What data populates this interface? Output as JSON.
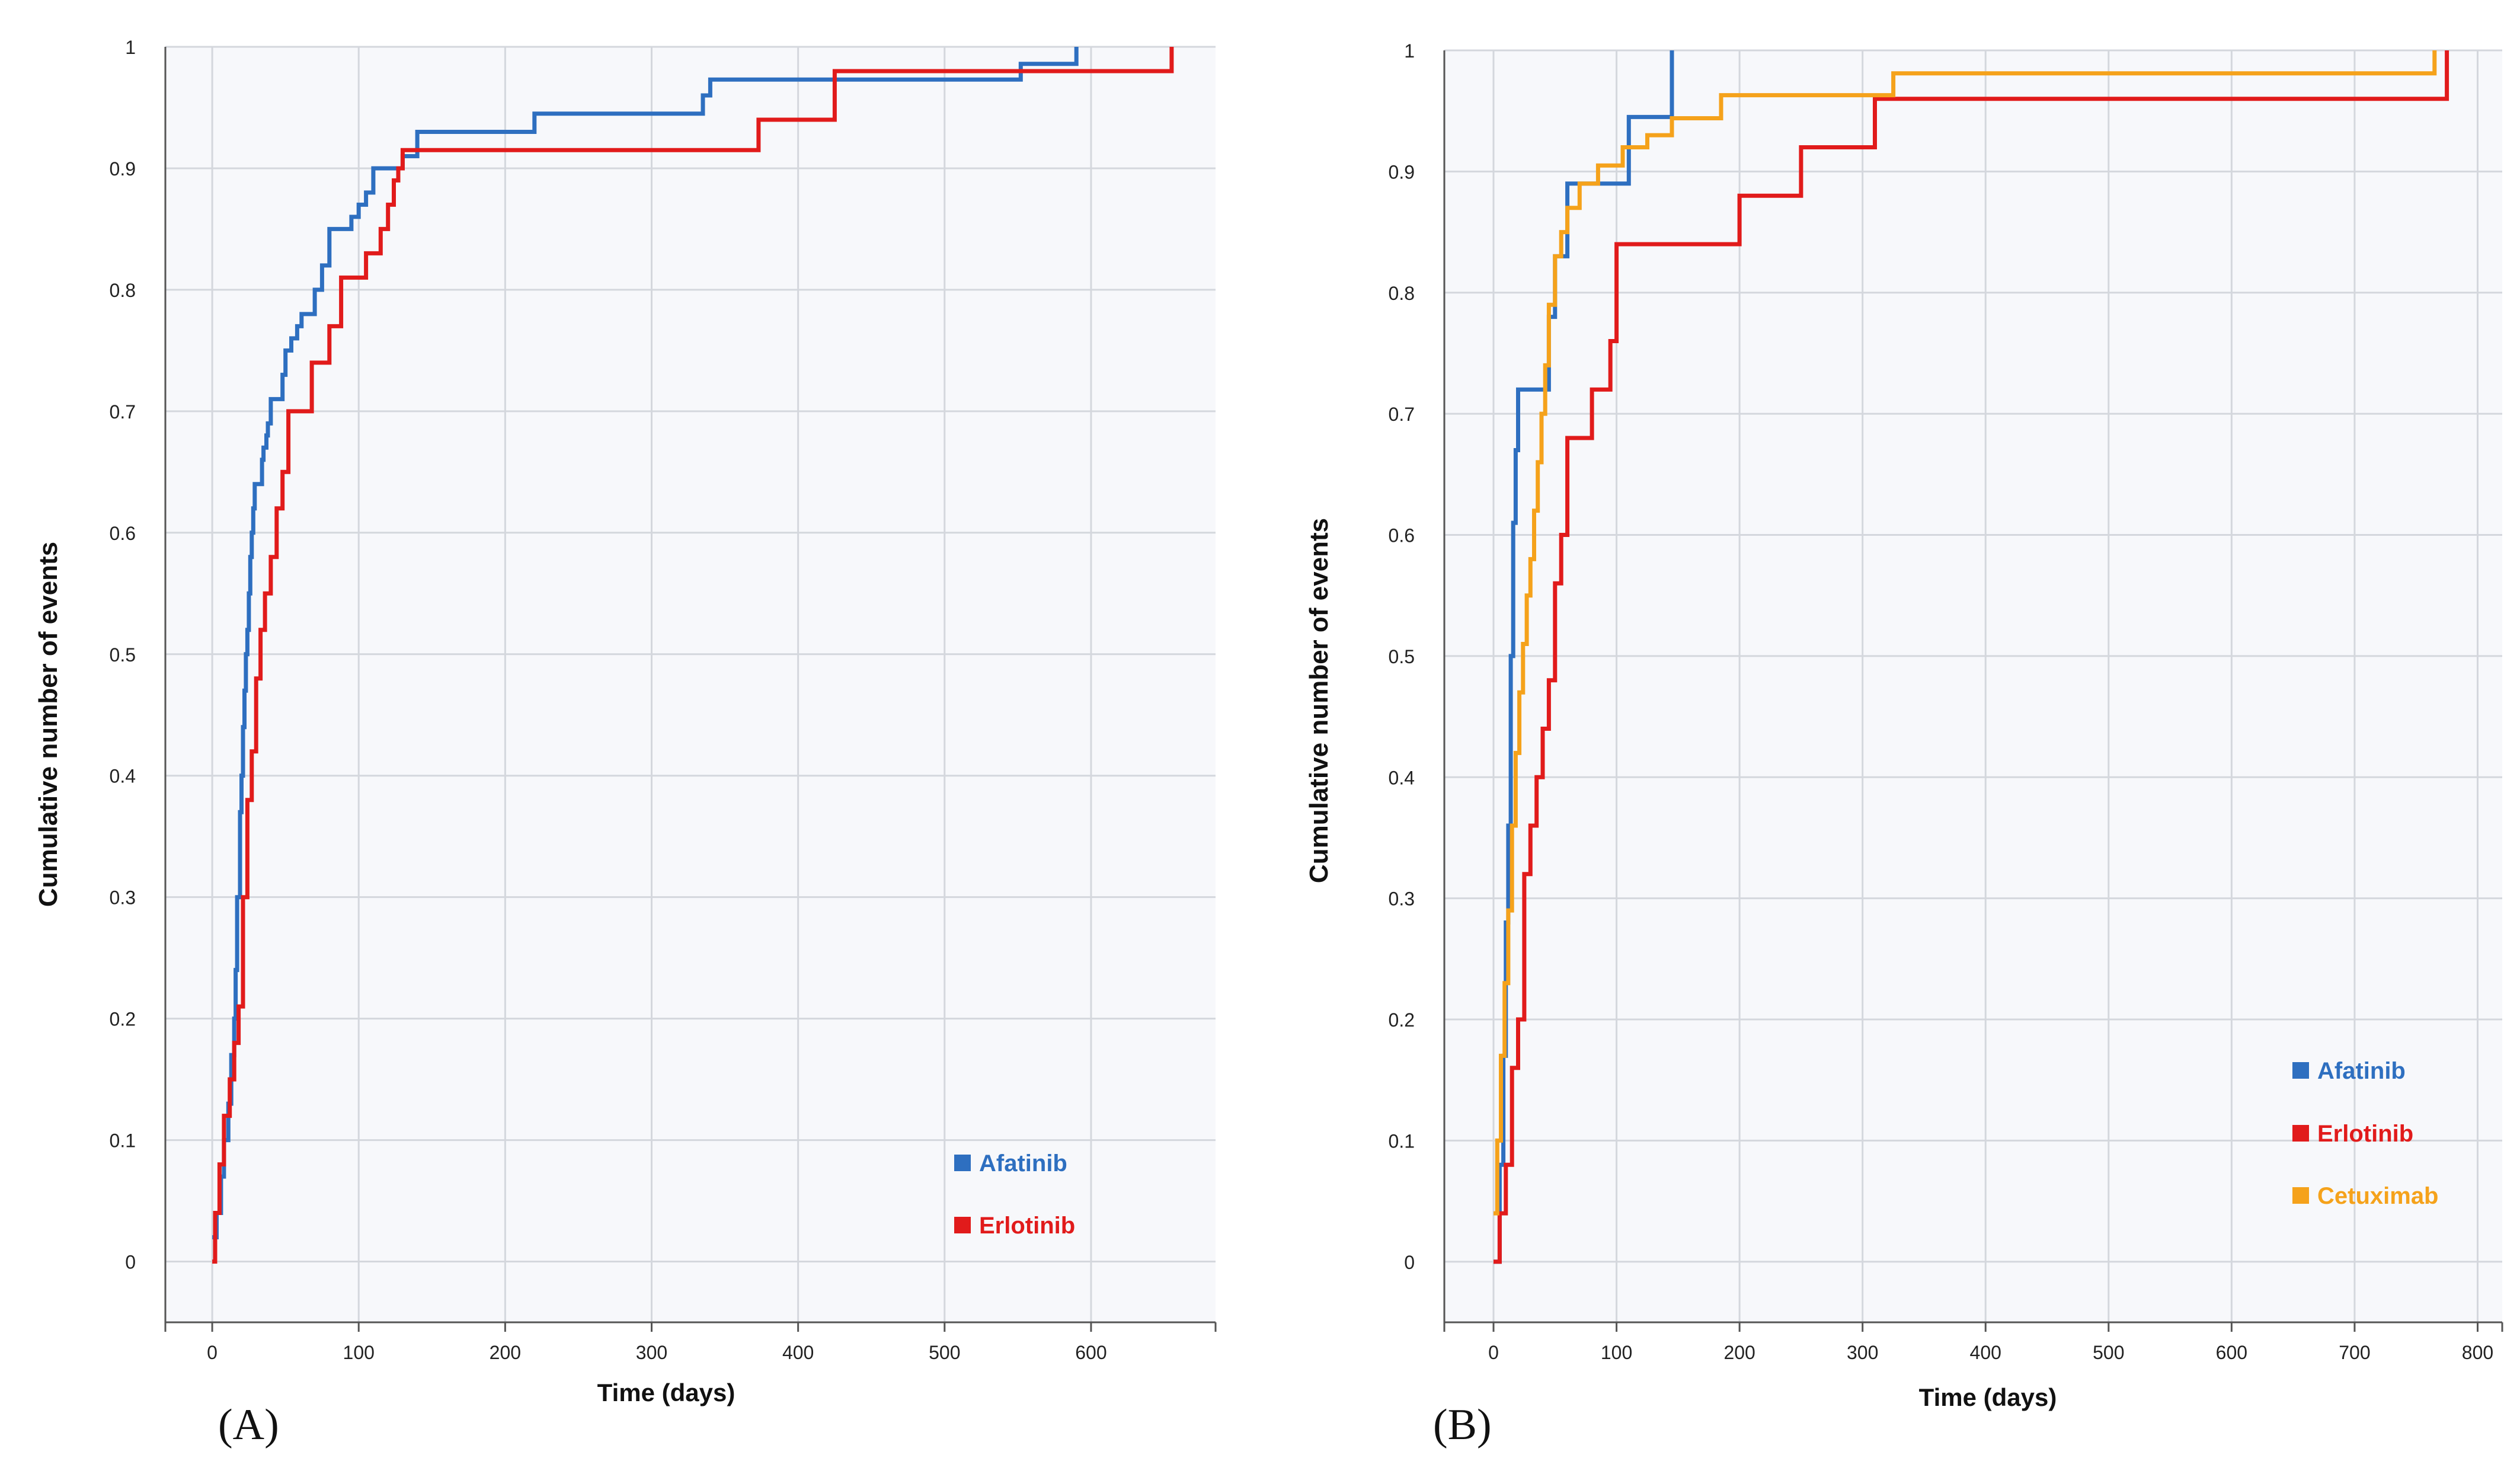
{
  "chart_data": [
    {
      "type": "line",
      "panel_label": "(A)",
      "xlabel": "Time (days)",
      "ylabel": "Cumulative number of events",
      "xlim": [
        -32,
        685
      ],
      "ylim": [
        -0.05,
        1.0
      ],
      "xticks": [
        0,
        100,
        200,
        300,
        400,
        500,
        600
      ],
      "yticks": [
        0,
        0.1,
        0.2,
        0.3,
        0.4,
        0.5,
        0.6,
        0.7,
        0.8,
        0.9,
        1
      ],
      "grid": true,
      "legend_position": "bottom-right",
      "series": [
        {
          "name": "Afatinib",
          "color": "#2e6fc0",
          "x": [
            0,
            3,
            6,
            8,
            11,
            13,
            15,
            16,
            17,
            19,
            20,
            21,
            22,
            23,
            24,
            25,
            26,
            27,
            28,
            29,
            30,
            31,
            32,
            34,
            35,
            37,
            38,
            40,
            42,
            44,
            46,
            48,
            50,
            54,
            56,
            58,
            61,
            65,
            70,
            75,
            80,
            88,
            95,
            100,
            105,
            110,
            130,
            140,
            220,
            335,
            340,
            425,
            552,
            590
          ],
          "y": [
            0.02,
            0.04,
            0.07,
            0.1,
            0.13,
            0.17,
            0.2,
            0.24,
            0.3,
            0.37,
            0.4,
            0.44,
            0.47,
            0.5,
            0.52,
            0.55,
            0.58,
            0.6,
            0.62,
            0.64,
            0.64,
            0.64,
            0.64,
            0.66,
            0.67,
            0.68,
            0.69,
            0.71,
            0.71,
            0.71,
            0.71,
            0.73,
            0.75,
            0.76,
            0.76,
            0.77,
            0.78,
            0.78,
            0.8,
            0.82,
            0.85,
            0.85,
            0.86,
            0.87,
            0.88,
            0.9,
            0.91,
            0.93,
            0.945,
            0.96,
            0.973,
            0.973,
            0.986,
            1.0
          ]
        },
        {
          "name": "Erlotinib",
          "color": "#e11b1b",
          "x": [
            0,
            2,
            5,
            8,
            12,
            15,
            18,
            21,
            24,
            27,
            30,
            33,
            36,
            40,
            44,
            48,
            52,
            56,
            60,
            68,
            72,
            80,
            88,
            96,
            105,
            115,
            120,
            124,
            127,
            130,
            373,
            425,
            655
          ],
          "y": [
            0.0,
            0.04,
            0.08,
            0.12,
            0.15,
            0.18,
            0.21,
            0.3,
            0.38,
            0.42,
            0.48,
            0.52,
            0.55,
            0.58,
            0.62,
            0.65,
            0.7,
            0.7,
            0.7,
            0.74,
            0.74,
            0.77,
            0.81,
            0.81,
            0.83,
            0.85,
            0.87,
            0.89,
            0.9,
            0.915,
            0.94,
            0.98,
            1.0
          ]
        }
      ]
    },
    {
      "type": "line",
      "panel_label": "(B)",
      "xlabel": "Time (days)",
      "ylabel": "Cumulative number of events",
      "xlim": [
        -40,
        820
      ],
      "ylim": [
        -0.05,
        1.0
      ],
      "xticks": [
        0,
        100,
        200,
        300,
        400,
        500,
        600,
        700,
        800
      ],
      "yticks": [
        0,
        0.1,
        0.2,
        0.3,
        0.4,
        0.5,
        0.6,
        0.7,
        0.8,
        0.9,
        1
      ],
      "grid": true,
      "legend_position": "bottom-right",
      "series": [
        {
          "name": "Afatinib",
          "color": "#2e6fc0",
          "x": [
            0,
            5,
            8,
            10,
            12,
            14,
            16,
            18,
            20,
            24,
            30,
            34,
            45,
            50,
            55,
            60,
            85,
            110,
            145
          ],
          "y": [
            0.0,
            0.08,
            0.17,
            0.28,
            0.36,
            0.5,
            0.61,
            0.67,
            0.72,
            0.72,
            0.72,
            0.72,
            0.78,
            0.83,
            0.83,
            0.89,
            0.89,
            0.945,
            1.0
          ]
        },
        {
          "name": "Erlotinib",
          "color": "#e11b1b",
          "x": [
            0,
            5,
            10,
            15,
            20,
            25,
            30,
            35,
            40,
            45,
            50,
            55,
            60,
            80,
            95,
            100,
            200,
            250,
            310,
            775
          ],
          "y": [
            0.0,
            0.04,
            0.08,
            0.16,
            0.2,
            0.32,
            0.36,
            0.4,
            0.44,
            0.48,
            0.56,
            0.6,
            0.68,
            0.72,
            0.76,
            0.84,
            0.88,
            0.92,
            0.96,
            1.0
          ]
        },
        {
          "name": "Cetuximab",
          "color": "#f5a21b",
          "x": [
            0,
            3,
            6,
            9,
            12,
            15,
            18,
            21,
            24,
            27,
            30,
            33,
            36,
            39,
            42,
            45,
            50,
            55,
            60,
            70,
            85,
            105,
            125,
            145,
            185,
            325,
            765
          ],
          "y": [
            0.04,
            0.1,
            0.17,
            0.23,
            0.29,
            0.36,
            0.42,
            0.47,
            0.51,
            0.55,
            0.58,
            0.62,
            0.66,
            0.7,
            0.74,
            0.79,
            0.83,
            0.85,
            0.87,
            0.89,
            0.905,
            0.92,
            0.93,
            0.944,
            0.963,
            0.981,
            1.0
          ]
        }
      ]
    }
  ]
}
